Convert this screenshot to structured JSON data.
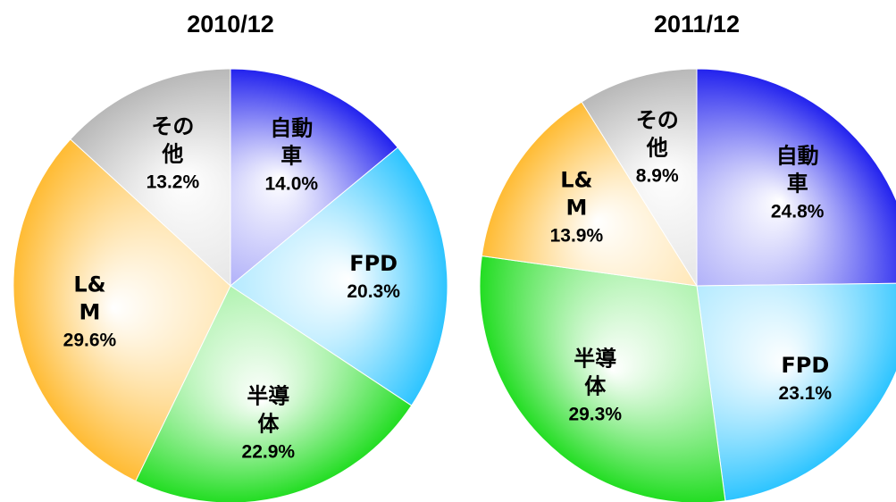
{
  "chart_data": [
    {
      "type": "pie",
      "title": "2010/12",
      "categories": [
        "自動車",
        "FPD",
        "半導体",
        "L&M",
        "その他"
      ],
      "values": [
        14.0,
        20.3,
        22.9,
        29.6,
        13.2
      ],
      "value_labels": [
        "14.0%",
        "20.3%",
        "22.9%",
        "29.6%",
        "13.2%"
      ],
      "colors": [
        "#2222ee",
        "#2cc4ff",
        "#22dd22",
        "#ffbb33",
        "#b8b8b8"
      ]
    },
    {
      "type": "pie",
      "title": "2011/12",
      "categories": [
        "自動車",
        "FPD",
        "半導体",
        "L&M",
        "その他"
      ],
      "values": [
        24.8,
        23.1,
        29.3,
        13.9,
        8.9
      ],
      "value_labels": [
        "24.8%",
        "23.1%",
        "29.3%",
        "13.9%",
        "8.9%"
      ],
      "colors": [
        "#2222ee",
        "#2cc4ff",
        "#22dd22",
        "#ffbb33",
        "#b8b8b8"
      ]
    }
  ]
}
